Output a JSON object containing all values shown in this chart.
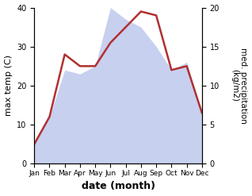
{
  "months": [
    "Jan",
    "Feb",
    "Mar",
    "Apr",
    "May",
    "Jun",
    "Jul",
    "Aug",
    "Sep",
    "Oct",
    "Nov",
    "Dec"
  ],
  "temp": [
    5,
    12,
    28,
    25,
    25,
    31,
    35,
    39,
    38,
    24,
    25,
    13
  ],
  "precip_right": [
    2.5,
    6,
    12,
    11.5,
    12.5,
    20,
    18.5,
    17.5,
    15,
    12,
    13,
    6.5
  ],
  "temp_color": "#b03030",
  "precip_fill_color": "#c8d0f0",
  "xlabel": "date (month)",
  "ylabel_left": "max temp (C)",
  "ylabel_right": "med. precipitation\n(kg/m2)",
  "ylim_left": [
    0,
    40
  ],
  "ylim_right": [
    0,
    20
  ],
  "yticks_left": [
    0,
    10,
    20,
    30,
    40
  ],
  "yticks_right": [
    0,
    5,
    10,
    15,
    20
  ],
  "background_color": "#ffffff"
}
